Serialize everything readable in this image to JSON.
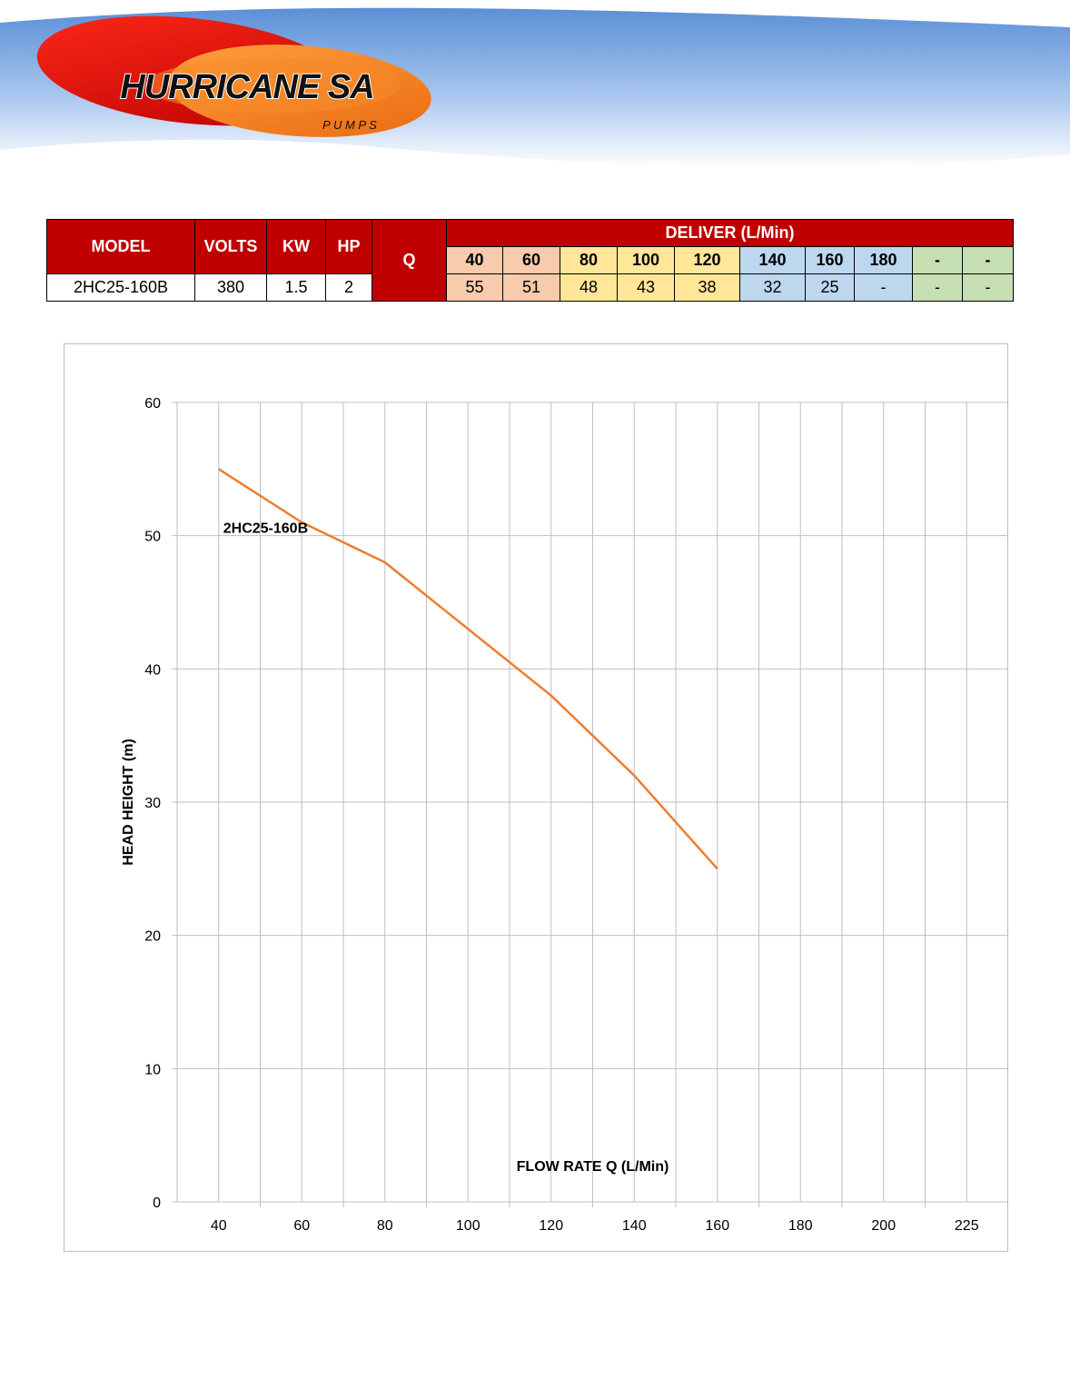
{
  "brand": {
    "name": "HURRICANE SA",
    "sub": "P U M P S",
    "colors": {
      "red": "#d90000",
      "orange": "#f07a1a",
      "sky": "#5b8fd6"
    }
  },
  "table": {
    "headers": {
      "model": "MODEL",
      "volts": "VOLTS",
      "kw": "KW",
      "hp": "HP",
      "q": "Q",
      "deliver": "DELIVER (L/Min)"
    },
    "flow_values": [
      "40",
      "60",
      "80",
      "100",
      "120",
      "140",
      "160",
      "180",
      "-",
      "-"
    ],
    "row": {
      "model": "2HC25-160B",
      "volts": "380",
      "kw": "1.5",
      "hp": "2",
      "heads": [
        "55",
        "51",
        "48",
        "43",
        "38",
        "32",
        "25",
        "-",
        "-",
        "-"
      ]
    },
    "colors": {
      "header_red": "#c00000",
      "peach": "#f8cbad",
      "yellow": "#ffe699",
      "blue": "#bdd7ee",
      "green": "#c6e0b4"
    }
  },
  "chart_data": {
    "type": "line",
    "categories": [
      "40",
      "60",
      "80",
      "100",
      "120",
      "140",
      "160",
      "180",
      "200",
      "225"
    ],
    "series": [
      {
        "name": "2HC25-160B",
        "values": [
          55,
          51,
          48,
          43,
          38,
          32,
          25,
          null,
          null,
          null
        ],
        "color": "#ed7d31"
      }
    ],
    "xlabel": "FLOW RATE Q (L/Min)",
    "ylabel": "HEAD HEIGHT (m)",
    "ylim": [
      0,
      60
    ],
    "yticks": [
      0,
      10,
      20,
      30,
      40,
      50,
      60
    ],
    "grid": true,
    "gridline_color": "#bfbfbf"
  }
}
